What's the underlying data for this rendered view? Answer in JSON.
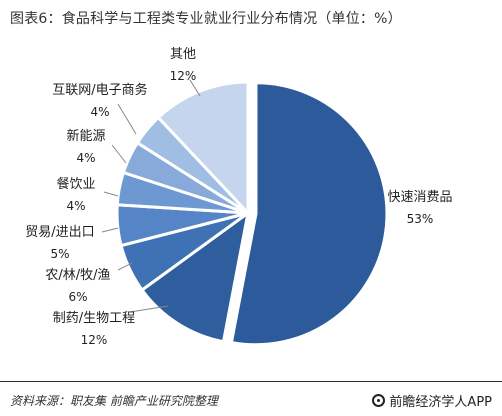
{
  "title": "图表6：食品科学与工程类专业就业行业分布情况（单位：%）",
  "source": "资料来源：职友集 前瞻产业研究院整理",
  "brand": "前瞻经济学人APP",
  "chart_data": {
    "type": "pie",
    "title": "图表6：食品科学与工程类专业就业行业分布情况（单位：%）",
    "unit": "%",
    "legend": "none",
    "slices": [
      {
        "label": "快速消费品",
        "value": 53,
        "value_label": "53%",
        "color": "#2c5a9a"
      },
      {
        "label": "制药/生物工程",
        "value": 12,
        "value_label": "12%",
        "color": "#2f5e9e"
      },
      {
        "label": "农/林/牧/渔",
        "value": 6,
        "value_label": "6%",
        "color": "#3f72b4"
      },
      {
        "label": "贸易/进出口",
        "value": 5,
        "value_label": "5%",
        "color": "#5585c6"
      },
      {
        "label": "餐饮业",
        "value": 4,
        "value_label": "4%",
        "color": "#6e98d2"
      },
      {
        "label": "新能源",
        "value": 4,
        "value_label": "4%",
        "color": "#87aadb"
      },
      {
        "label": "互联网/电子商务",
        "value": 4,
        "value_label": "4%",
        "color": "#a0bde4"
      },
      {
        "label": "其他",
        "value": 12,
        "value_label": "12%",
        "color": "#c5d5ee"
      }
    ]
  }
}
